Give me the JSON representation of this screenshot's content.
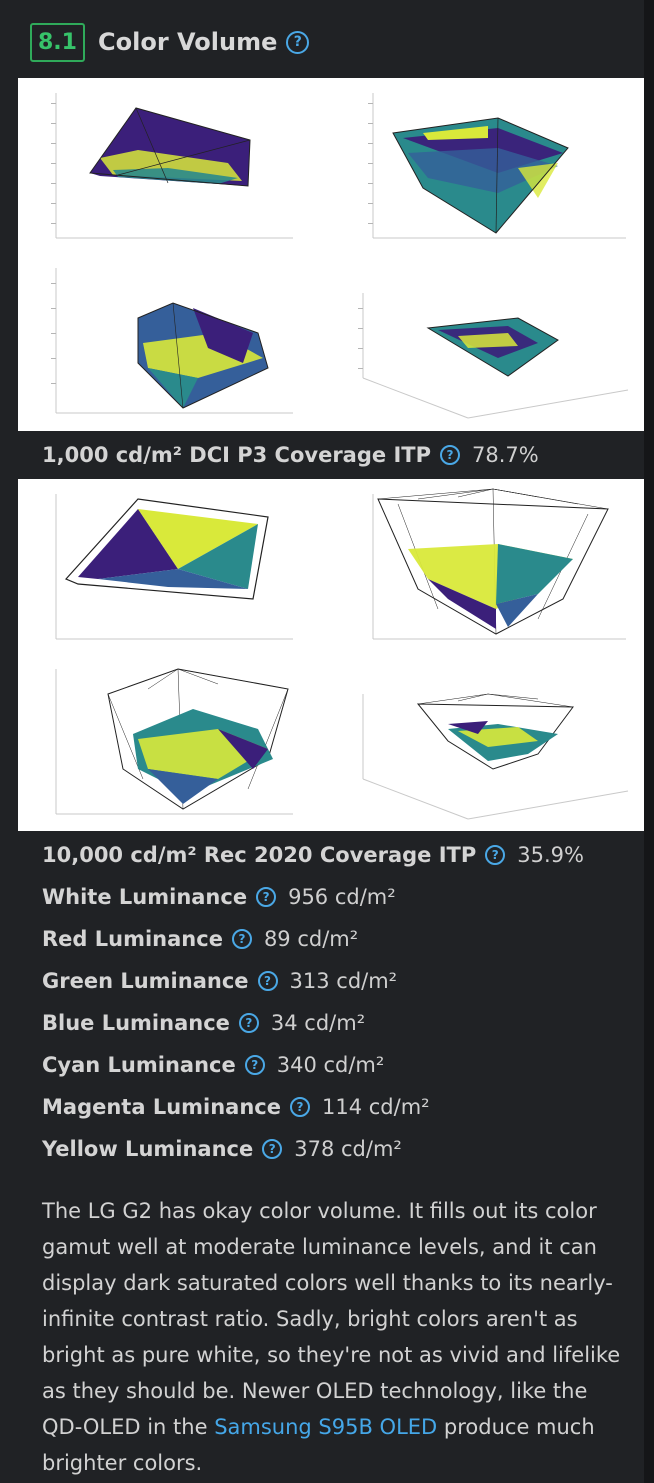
{
  "section": {
    "number": "8.1",
    "title": "Color Volume"
  },
  "graphs": [
    {
      "measurement": {
        "label": "1,000 cd/m² DCI P3 Coverage ITP",
        "value": "78.7%"
      }
    },
    {
      "measurement": {
        "label": "10,000 cd/m² Rec 2020 Coverage ITP",
        "value": "35.9%"
      }
    }
  ],
  "luminance": [
    {
      "label": "White Luminance",
      "value": "956 cd/m²"
    },
    {
      "label": "Red Luminance",
      "value": "89 cd/m²"
    },
    {
      "label": "Green Luminance",
      "value": "313 cd/m²"
    },
    {
      "label": "Blue Luminance",
      "value": "34 cd/m²"
    },
    {
      "label": "Cyan Luminance",
      "value": "340 cd/m²"
    },
    {
      "label": "Magenta Luminance",
      "value": "114 cd/m²"
    },
    {
      "label": "Yellow Luminance",
      "value": "378 cd/m²"
    }
  ],
  "description": {
    "before_link": "The LG G2 has okay color volume. It fills out its color gamut well at moderate luminance levels, and it can display dark saturated colors well thanks to its nearly-infinite contrast ratio. Sadly, bright colors aren't as bright as pure white, so they're not as vivid and lifelike as they should be. Newer OLED technology, like the QD-OLED in the",
    "link_text": "Samsung S95B OLED",
    "after_link": "produce much brighter colors."
  },
  "colors": {
    "accent_green": "#2faa5a",
    "link_blue": "#45a7e8",
    "background": "#202225",
    "plot_purple": "#3b1f7a",
    "plot_teal": "#2a8a8c",
    "plot_yellow": "#d9e93a",
    "plot_blue": "#355f9a"
  },
  "icons": {
    "help": "help-circle-icon"
  }
}
